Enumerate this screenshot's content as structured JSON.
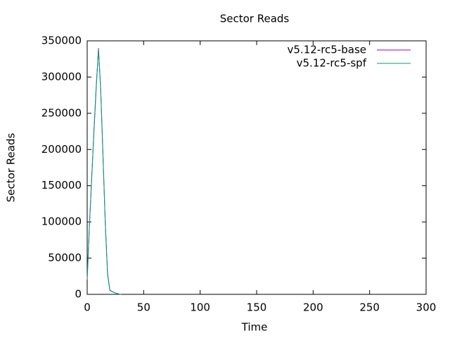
{
  "chart_data": {
    "type": "line",
    "title": "Sector Reads",
    "x_label": "Time",
    "y_label": "Sector Reads",
    "x": [
      0,
      2,
      4,
      6,
      8,
      10,
      12,
      14,
      16,
      18,
      20,
      22,
      24,
      26,
      28,
      30
    ],
    "series": [
      {
        "name": "v5.12-rc5-base",
        "color": "#9400d3",
        "values": [
          20000,
          95000,
          160000,
          225000,
          285000,
          340000,
          280000,
          190000,
          100000,
          30000,
          6000,
          4000,
          2500,
          1500,
          500,
          0
        ]
      },
      {
        "name": "v5.12-rc5-spf",
        "color": "#009e73",
        "values": [
          22000,
          97000,
          162000,
          228000,
          288000,
          338000,
          282000,
          192000,
          98000,
          28000,
          5500,
          3800,
          2400,
          1400,
          400,
          0
        ]
      }
    ],
    "xlim": [
      0,
      300
    ],
    "xticks": [
      0,
      50,
      100,
      150,
      200,
      250,
      300
    ],
    "ylim": [
      0,
      350000
    ],
    "yticks": [
      0,
      50000,
      100000,
      150000,
      200000,
      250000,
      300000,
      350000
    ],
    "legend": "top-right"
  }
}
